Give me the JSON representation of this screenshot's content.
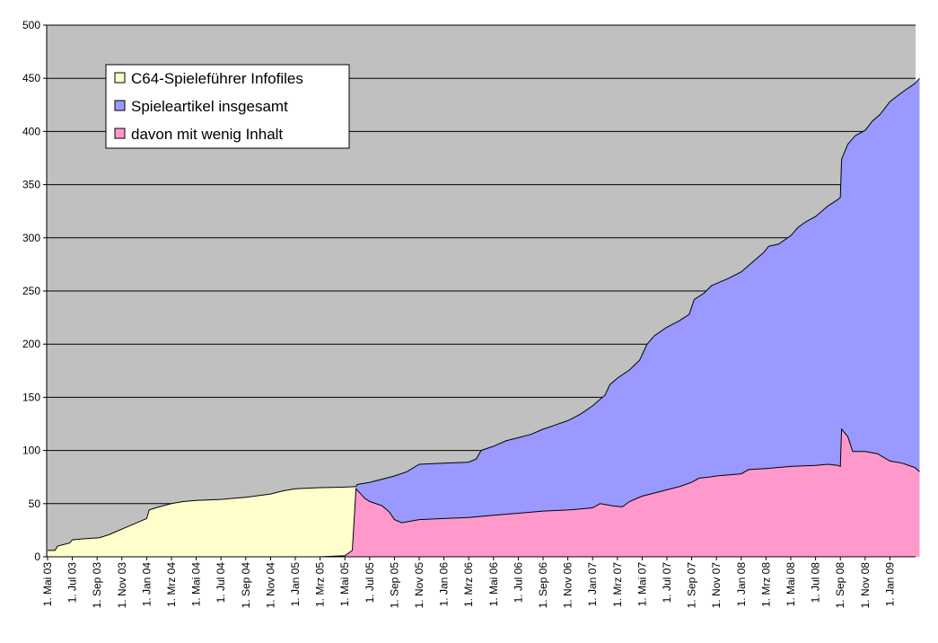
{
  "chart_data": {
    "type": "area",
    "title": "",
    "xlabel": "",
    "ylabel": "",
    "ylim": [
      0,
      500
    ],
    "yticks": [
      "0",
      "50",
      "100",
      "150",
      "200",
      "250",
      "300",
      "350",
      "400",
      "450",
      "500"
    ],
    "xticks": [
      "1. Mai 03",
      "1. Jul 03",
      "1. Sep 03",
      "1. Nov 03",
      "1. Jan 04",
      "1. Mrz 04",
      "1. Mai 04",
      "1. Jul 04",
      "1. Sep 04",
      "1. Nov 04",
      "1. Jan 05",
      "1. Mrz 05",
      "1. Mai 05",
      "1. Jul 05",
      "1. Sep 05",
      "1. Nov 05",
      "1. Jan 06",
      "1. Mrz 06",
      "1. Mai 06",
      "1. Jul 06",
      "1. Sep 06",
      "1. Nov 06",
      "1. Jan 07",
      "1. Mrz 07",
      "1. Mai 07",
      "1. Jul 07",
      "1. Sep 07",
      "1. Nov 07",
      "1. Jan 08",
      "1. Mrz 08",
      "1. Mai 08",
      "1. Jul 08",
      "1. Sep 08",
      "1. Nov 08",
      "1. Jan 09"
    ],
    "grid": true,
    "legend_position": "top-left",
    "colors": {
      "plot_background": "#c0c0c0",
      "infofiles": "#ffffcc",
      "gesamt": "#9999ff",
      "wenig": "#ff99cc",
      "gridline": "#000000"
    },
    "series": [
      {
        "name": "C64-Spieleführer Infofiles",
        "color": "#ffffcc",
        "points": [
          [
            0,
            6
          ],
          [
            0.3,
            6
          ],
          [
            0.4,
            10
          ],
          [
            0.9,
            13
          ],
          [
            1.0,
            16
          ],
          [
            1.5,
            17
          ],
          [
            2.1,
            18
          ],
          [
            2.5,
            21
          ],
          [
            3.0,
            26
          ],
          [
            3.5,
            31
          ],
          [
            4.0,
            36
          ],
          [
            4.1,
            44
          ],
          [
            4.5,
            47
          ],
          [
            5.0,
            50
          ],
          [
            5.5,
            52
          ],
          [
            6.0,
            53
          ],
          [
            7.0,
            54
          ],
          [
            8.0,
            56
          ],
          [
            9.0,
            59
          ],
          [
            9.5,
            62
          ],
          [
            10.0,
            64
          ],
          [
            11.0,
            65
          ],
          [
            12.0,
            65.5
          ],
          [
            12.45,
            66
          ]
        ]
      },
      {
        "name": "Spieleartikel insgesamt",
        "color": "#9999ff",
        "points": [
          [
            12.45,
            66
          ],
          [
            12.5,
            68
          ],
          [
            13.0,
            70
          ],
          [
            13.5,
            73
          ],
          [
            14.0,
            76
          ],
          [
            14.5,
            80
          ],
          [
            15.0,
            87
          ],
          [
            16.0,
            88
          ],
          [
            17.0,
            89
          ],
          [
            17.3,
            92
          ],
          [
            17.5,
            100
          ],
          [
            18.0,
            104
          ],
          [
            18.5,
            109
          ],
          [
            19.0,
            112
          ],
          [
            19.5,
            115
          ],
          [
            20.0,
            120
          ],
          [
            20.5,
            124
          ],
          [
            21.0,
            128
          ],
          [
            21.5,
            134
          ],
          [
            22.0,
            142
          ],
          [
            22.5,
            152
          ],
          [
            22.7,
            162
          ],
          [
            23.0,
            168
          ],
          [
            23.5,
            176
          ],
          [
            23.9,
            185
          ],
          [
            24.2,
            200
          ],
          [
            24.5,
            208
          ],
          [
            25.0,
            216
          ],
          [
            25.5,
            222
          ],
          [
            25.9,
            228
          ],
          [
            26.1,
            242
          ],
          [
            26.5,
            248
          ],
          [
            26.8,
            255
          ],
          [
            27.0,
            257
          ],
          [
            27.5,
            262
          ],
          [
            28.0,
            268
          ],
          [
            28.5,
            278
          ],
          [
            28.9,
            286
          ],
          [
            29.1,
            292
          ],
          [
            29.5,
            294
          ],
          [
            30.0,
            302
          ],
          [
            30.3,
            310
          ],
          [
            30.6,
            315
          ],
          [
            31.0,
            320
          ],
          [
            31.5,
            330
          ],
          [
            31.9,
            336
          ],
          [
            32.0,
            338
          ],
          [
            32.05,
            374
          ],
          [
            32.3,
            388
          ],
          [
            32.6,
            396
          ],
          [
            33.0,
            401
          ],
          [
            33.3,
            410
          ],
          [
            33.6,
            416
          ],
          [
            34.0,
            428
          ],
          [
            34.5,
            437
          ],
          [
            35.0,
            445
          ],
          [
            35.2,
            450
          ]
        ]
      },
      {
        "name": "davon mit wenig Inhalt",
        "color": "#ff99cc",
        "points": [
          [
            11.0,
            0
          ],
          [
            12.0,
            1
          ],
          [
            12.3,
            6
          ],
          [
            12.45,
            64
          ],
          [
            12.8,
            55
          ],
          [
            13.0,
            52
          ],
          [
            13.5,
            48
          ],
          [
            13.8,
            42
          ],
          [
            14.0,
            35
          ],
          [
            14.3,
            32
          ],
          [
            15.0,
            35
          ],
          [
            16.0,
            36
          ],
          [
            17.0,
            37
          ],
          [
            18.0,
            39
          ],
          [
            19.0,
            41
          ],
          [
            20.0,
            43
          ],
          [
            21.0,
            44
          ],
          [
            22.0,
            46
          ],
          [
            22.3,
            50
          ],
          [
            22.8,
            48
          ],
          [
            23.2,
            47
          ],
          [
            23.5,
            52
          ],
          [
            24.0,
            57
          ],
          [
            24.5,
            60
          ],
          [
            25.0,
            63
          ],
          [
            25.5,
            66
          ],
          [
            26.0,
            70
          ],
          [
            26.3,
            74
          ],
          [
            26.7,
            75
          ],
          [
            27.0,
            76
          ],
          [
            28.0,
            78
          ],
          [
            28.3,
            82
          ],
          [
            29.0,
            83
          ],
          [
            30.0,
            85
          ],
          [
            31.0,
            86
          ],
          [
            31.5,
            87
          ],
          [
            31.9,
            86
          ],
          [
            32.0,
            85
          ],
          [
            32.05,
            120
          ],
          [
            32.3,
            113
          ],
          [
            32.5,
            99
          ],
          [
            33.0,
            99
          ],
          [
            33.5,
            97
          ],
          [
            34.0,
            90
          ],
          [
            34.5,
            88
          ],
          [
            35.0,
            84
          ],
          [
            35.2,
            80
          ]
        ]
      }
    ]
  }
}
